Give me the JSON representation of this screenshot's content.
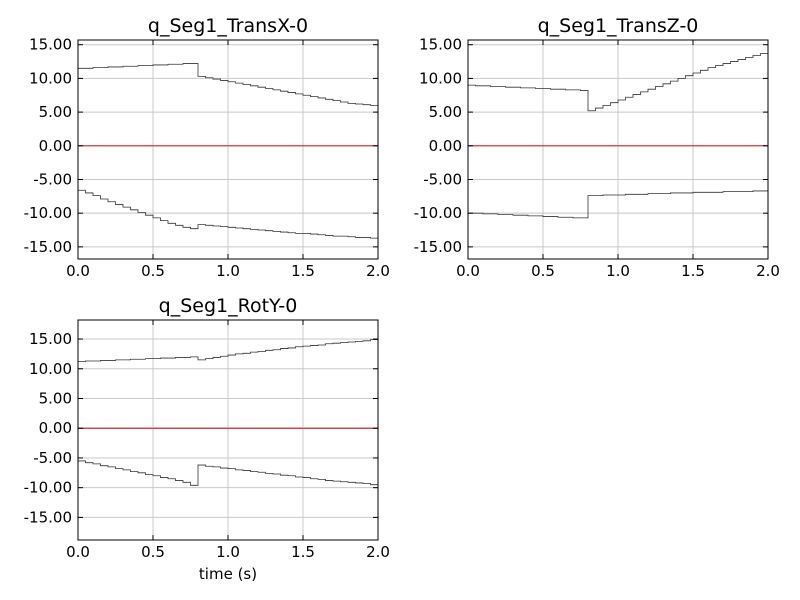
{
  "chart_data": [
    {
      "type": "line",
      "title": "q_Seg1_TransX-0",
      "xlabel": "",
      "ylabel": "",
      "xlim": [
        0,
        2
      ],
      "ylim": [
        -16.8,
        15.7
      ],
      "xticks": [
        0,
        0.5,
        1,
        1.5,
        2
      ],
      "xtick_labels": [
        "0.0",
        "0.5",
        "1.0",
        "1.5",
        "2.0"
      ],
      "yticks": [
        15,
        10,
        5,
        0,
        -5,
        -10,
        -15
      ],
      "ytick_labels": [
        "15.00",
        "10.00",
        "5.00",
        "0.00",
        "-5.00",
        "-10.00",
        "-15.00"
      ],
      "grid": true,
      "step": true,
      "series": [
        {
          "color": "#333333",
          "x": [
            0,
            0.05,
            0.1,
            0.15,
            0.2,
            0.25,
            0.3,
            0.35,
            0.4,
            0.45,
            0.5,
            0.55,
            0.6,
            0.65,
            0.7,
            0.75,
            0.8,
            0.85,
            0.9,
            0.95,
            1.0,
            1.05,
            1.1,
            1.15,
            1.2,
            1.25,
            1.3,
            1.35,
            1.4,
            1.45,
            1.5,
            1.55,
            1.6,
            1.65,
            1.7,
            1.75,
            1.8,
            1.85,
            1.9,
            1.95
          ],
          "y": [
            11.5,
            11.5,
            11.6,
            11.6,
            11.7,
            11.7,
            11.8,
            11.8,
            11.9,
            11.9,
            12.0,
            12.0,
            12.1,
            12.1,
            12.2,
            12.2,
            10.3,
            10.1,
            9.9,
            9.7,
            9.5,
            9.3,
            9.1,
            8.9,
            8.7,
            8.5,
            8.3,
            8.1,
            7.9,
            7.7,
            7.5,
            7.3,
            7.1,
            6.9,
            6.7,
            6.5,
            6.3,
            6.2,
            6.1,
            6.0
          ]
        },
        {
          "color": "#333333",
          "x": [
            0,
            0.05,
            0.1,
            0.15,
            0.2,
            0.25,
            0.3,
            0.35,
            0.4,
            0.45,
            0.5,
            0.55,
            0.6,
            0.65,
            0.7,
            0.75,
            0.8,
            0.85,
            0.9,
            0.95,
            1.0,
            1.05,
            1.1,
            1.15,
            1.2,
            1.25,
            1.3,
            1.35,
            1.4,
            1.45,
            1.5,
            1.55,
            1.6,
            1.65,
            1.7,
            1.75,
            1.8,
            1.85,
            1.9,
            1.95
          ],
          "y": [
            -6.6,
            -7.0,
            -7.4,
            -7.9,
            -8.3,
            -8.7,
            -9.1,
            -9.5,
            -9.9,
            -10.3,
            -10.7,
            -11.1,
            -11.5,
            -11.8,
            -12.1,
            -12.3,
            -11.7,
            -11.8,
            -11.9,
            -12.0,
            -12.1,
            -12.2,
            -12.3,
            -12.4,
            -12.5,
            -12.6,
            -12.7,
            -12.8,
            -12.9,
            -13.0,
            -13.0,
            -13.1,
            -13.2,
            -13.3,
            -13.4,
            -13.4,
            -13.5,
            -13.6,
            -13.6,
            -13.7
          ]
        },
        {
          "color": "#d62728",
          "x": [
            0,
            2
          ],
          "y": [
            0,
            0
          ]
        }
      ]
    },
    {
      "type": "line",
      "title": "q_Seg1_TransZ-0",
      "xlabel": "",
      "ylabel": "",
      "xlim": [
        0,
        2
      ],
      "ylim": [
        -16.8,
        15.7
      ],
      "xticks": [
        0,
        0.5,
        1,
        1.5,
        2
      ],
      "xtick_labels": [
        "0.0",
        "0.5",
        "1.0",
        "1.5",
        "2.0"
      ],
      "yticks": [
        15,
        10,
        5,
        0,
        -5,
        -10,
        -15
      ],
      "ytick_labels": [
        "15.00",
        "10.00",
        "5.00",
        "0.00",
        "-5.00",
        "-10.00",
        "-15.00"
      ],
      "grid": true,
      "step": true,
      "series": [
        {
          "color": "#333333",
          "x": [
            0,
            0.05,
            0.1,
            0.15,
            0.2,
            0.25,
            0.3,
            0.35,
            0.4,
            0.45,
            0.5,
            0.55,
            0.6,
            0.65,
            0.7,
            0.75,
            0.8,
            0.85,
            0.9,
            0.95,
            1.0,
            1.05,
            1.1,
            1.15,
            1.2,
            1.25,
            1.3,
            1.35,
            1.4,
            1.45,
            1.5,
            1.55,
            1.6,
            1.65,
            1.7,
            1.75,
            1.8,
            1.85,
            1.9,
            1.95
          ],
          "y": [
            9.0,
            8.9,
            8.9,
            8.8,
            8.8,
            8.7,
            8.7,
            8.6,
            8.6,
            8.5,
            8.5,
            8.4,
            8.4,
            8.3,
            8.3,
            8.2,
            5.2,
            5.6,
            6.0,
            6.4,
            6.8,
            7.2,
            7.6,
            8.0,
            8.4,
            8.8,
            9.2,
            9.6,
            10.0,
            10.4,
            10.8,
            11.2,
            11.6,
            11.9,
            12.2,
            12.5,
            12.8,
            13.1,
            13.4,
            13.7
          ]
        },
        {
          "color": "#333333",
          "x": [
            0,
            0.05,
            0.1,
            0.15,
            0.2,
            0.25,
            0.3,
            0.35,
            0.4,
            0.45,
            0.5,
            0.55,
            0.6,
            0.65,
            0.7,
            0.75,
            0.8,
            0.85,
            0.9,
            0.95,
            1.0,
            1.05,
            1.1,
            1.15,
            1.2,
            1.25,
            1.3,
            1.35,
            1.4,
            1.45,
            1.5,
            1.55,
            1.6,
            1.65,
            1.7,
            1.75,
            1.8,
            1.85,
            1.9,
            1.95
          ],
          "y": [
            -10.0,
            -10.0,
            -10.1,
            -10.1,
            -10.2,
            -10.2,
            -10.3,
            -10.3,
            -10.4,
            -10.4,
            -10.5,
            -10.5,
            -10.6,
            -10.6,
            -10.7,
            -10.7,
            -7.4,
            -7.4,
            -7.3,
            -7.3,
            -7.3,
            -7.2,
            -7.2,
            -7.2,
            -7.1,
            -7.1,
            -7.1,
            -7.0,
            -7.0,
            -7.0,
            -6.9,
            -6.9,
            -6.9,
            -6.9,
            -6.8,
            -6.8,
            -6.8,
            -6.8,
            -6.7,
            -6.7
          ]
        },
        {
          "color": "#d62728",
          "x": [
            0,
            2
          ],
          "y": [
            0,
            0
          ]
        }
      ]
    },
    {
      "type": "line",
      "title": "q_Seg1_RotY-0",
      "xlabel": "time (s)",
      "ylabel": "",
      "xlim": [
        0,
        2
      ],
      "ylim": [
        -18.8,
        18.2
      ],
      "xticks": [
        0,
        0.5,
        1,
        1.5,
        2
      ],
      "xtick_labels": [
        "0.0",
        "0.5",
        "1.0",
        "1.5",
        "2.0"
      ],
      "yticks": [
        15,
        10,
        5,
        0,
        -5,
        -10,
        -15
      ],
      "ytick_labels": [
        "15.00",
        "10.00",
        "5.00",
        "0.00",
        "-5.00",
        "-10.00",
        "-15.00"
      ],
      "grid": true,
      "step": true,
      "series": [
        {
          "color": "#333333",
          "x": [
            0,
            0.05,
            0.1,
            0.15,
            0.2,
            0.25,
            0.3,
            0.35,
            0.4,
            0.45,
            0.5,
            0.55,
            0.6,
            0.65,
            0.7,
            0.75,
            0.8,
            0.85,
            0.9,
            0.95,
            1.0,
            1.05,
            1.1,
            1.15,
            1.2,
            1.25,
            1.3,
            1.35,
            1.4,
            1.45,
            1.5,
            1.55,
            1.6,
            1.65,
            1.7,
            1.75,
            1.8,
            1.85,
            1.9,
            1.95
          ],
          "y": [
            11.2,
            11.3,
            11.3,
            11.4,
            11.4,
            11.5,
            11.5,
            11.6,
            11.6,
            11.7,
            11.7,
            11.8,
            11.8,
            11.9,
            11.9,
            12.0,
            11.5,
            11.7,
            11.9,
            12.1,
            12.3,
            12.5,
            12.6,
            12.8,
            12.9,
            13.1,
            13.2,
            13.4,
            13.5,
            13.7,
            13.8,
            13.9,
            14.0,
            14.2,
            14.3,
            14.4,
            14.5,
            14.6,
            14.7,
            14.9
          ]
        },
        {
          "color": "#333333",
          "x": [
            0,
            0.05,
            0.1,
            0.15,
            0.2,
            0.25,
            0.3,
            0.35,
            0.4,
            0.45,
            0.5,
            0.55,
            0.6,
            0.65,
            0.7,
            0.75,
            0.8,
            0.85,
            0.9,
            0.95,
            1.0,
            1.05,
            1.1,
            1.15,
            1.2,
            1.25,
            1.3,
            1.35,
            1.4,
            1.45,
            1.5,
            1.55,
            1.6,
            1.65,
            1.7,
            1.75,
            1.8,
            1.85,
            1.9,
            1.95
          ],
          "y": [
            -5.5,
            -5.8,
            -6.0,
            -6.3,
            -6.5,
            -6.8,
            -7.0,
            -7.3,
            -7.5,
            -7.8,
            -8.0,
            -8.3,
            -8.5,
            -8.8,
            -9.1,
            -9.6,
            -6.2,
            -6.4,
            -6.5,
            -6.7,
            -6.8,
            -7.0,
            -7.1,
            -7.3,
            -7.4,
            -7.6,
            -7.7,
            -7.9,
            -8.0,
            -8.2,
            -8.3,
            -8.5,
            -8.6,
            -8.8,
            -8.9,
            -9.0,
            -9.1,
            -9.2,
            -9.3,
            -9.5
          ]
        },
        {
          "color": "#d62728",
          "x": [
            0,
            2
          ],
          "y": [
            0,
            0
          ]
        }
      ]
    }
  ]
}
